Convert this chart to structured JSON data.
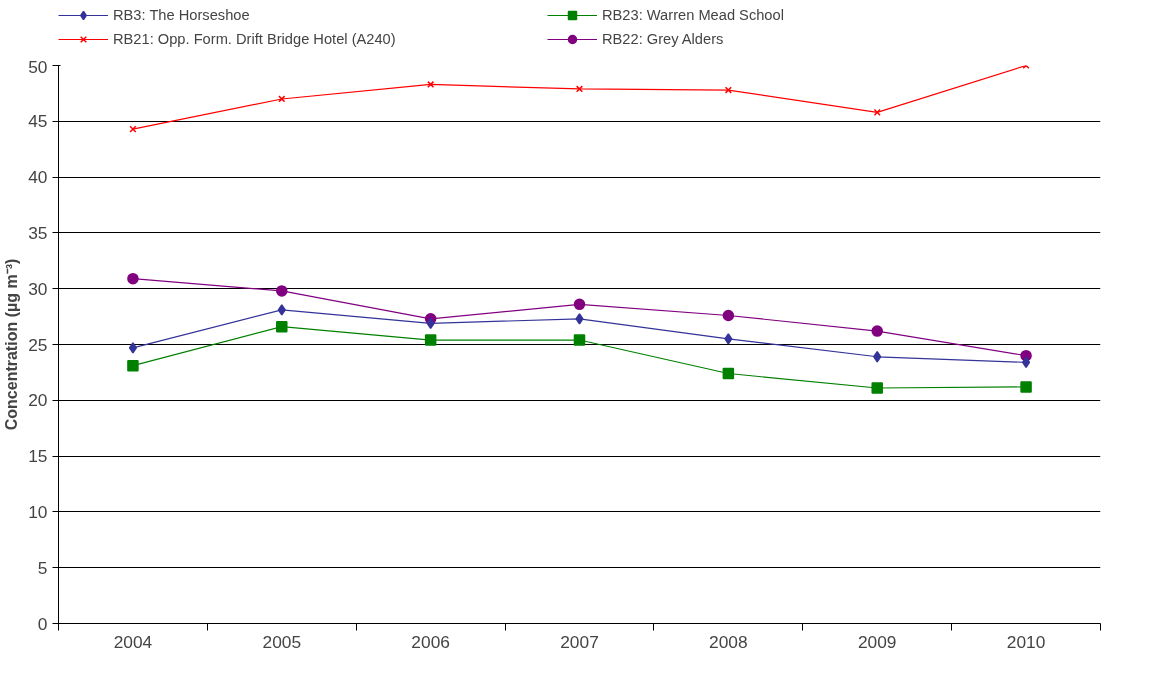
{
  "chart_data": {
    "type": "line",
    "ylabel": "Concentration (µg m⁻³)",
    "categories": [
      "2004",
      "2005",
      "2006",
      "2007",
      "2008",
      "2009",
      "2010"
    ],
    "ylim": [
      0,
      50
    ],
    "yticks": [
      0,
      5,
      10,
      15,
      20,
      25,
      30,
      35,
      40,
      45,
      50
    ],
    "grid": "y",
    "legend": "top",
    "series": [
      {
        "name": "RB3: The Horseshoe",
        "color": "#333399",
        "marker": "diamond",
        "values": [
          24.7,
          28.1,
          26.9,
          27.3,
          25.5,
          23.9,
          23.4
        ]
      },
      {
        "name": "RB23: Warren Mead School",
        "color": "#008000",
        "marker": "square",
        "values": [
          23.1,
          26.6,
          25.4,
          25.4,
          22.4,
          21.1,
          21.2
        ]
      },
      {
        "name": "RB21: Opp. Form. Drift Bridge Hotel (A240)",
        "color": "#ff0000",
        "marker": "cross",
        "values": [
          44.3,
          47.0,
          48.3,
          47.9,
          47.8,
          45.8,
          50.0
        ]
      },
      {
        "name": "RB22: Grey Alders",
        "color": "#800080",
        "marker": "circle",
        "values": [
          30.9,
          29.8,
          27.3,
          28.6,
          27.6,
          26.2,
          24.0
        ]
      }
    ]
  }
}
